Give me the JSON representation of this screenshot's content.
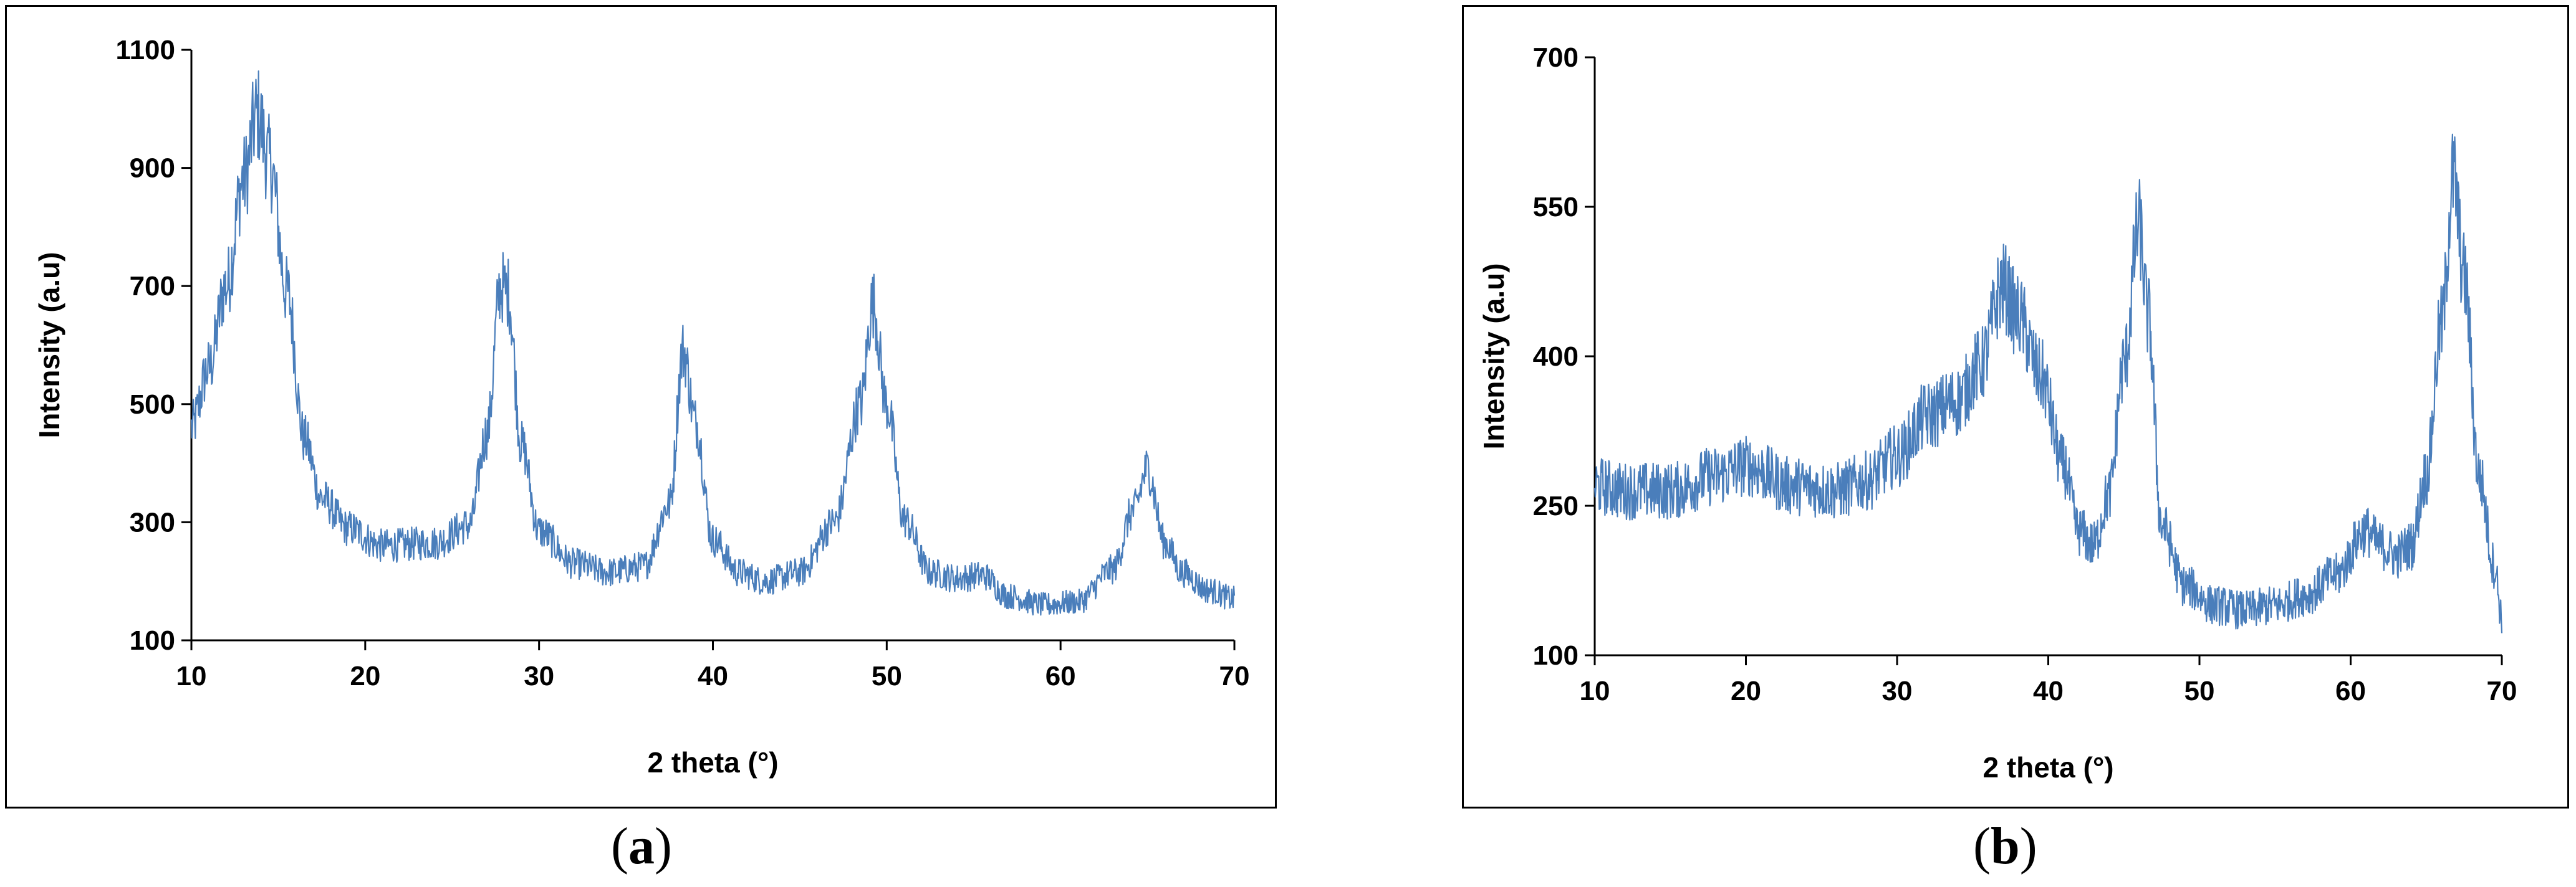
{
  "chart_data": [
    {
      "type": "line",
      "panel_label": "a",
      "xlabel": "2 theta (°)",
      "ylabel": "Intensity (a.u)",
      "xlim": [
        10,
        70
      ],
      "ylim": [
        100,
        1100
      ],
      "xticks": [
        "10",
        "20",
        "30",
        "40",
        "50",
        "60",
        "70"
      ],
      "yticks": [
        "100",
        "300",
        "500",
        "700",
        "900",
        "1100"
      ],
      "grid": false,
      "series": [
        {
          "color": "#4a7ebb",
          "x": [
            10,
            11,
            12,
            13,
            13.8,
            14.5,
            15.5,
            16.5,
            17.5,
            19,
            21,
            24,
            26,
            27,
            27.8,
            28.2,
            29,
            30,
            32,
            34,
            36,
            37.5,
            38.3,
            39,
            40,
            41.5,
            43,
            45,
            47,
            48.5,
            49.2,
            50,
            51,
            52.5,
            54,
            55.5,
            57,
            59,
            61,
            63,
            64.2,
            65,
            66,
            67,
            68.5,
            70
          ],
          "y": [
            460,
            560,
            700,
            880,
            990,
            910,
            690,
            440,
            340,
            290,
            260,
            265,
            295,
            450,
            700,
            690,
            430,
            285,
            230,
            215,
            225,
            330,
            590,
            470,
            270,
            215,
            200,
            215,
            300,
            500,
            670,
            500,
            305,
            215,
            205,
            210,
            175,
            160,
            165,
            220,
            320,
            390,
            265,
            215,
            185,
            170
          ]
        }
      ]
    },
    {
      "type": "line",
      "panel_label": "b",
      "xlabel": "2 theta (°)",
      "ylabel": "Intensity (a.u)",
      "xlim": [
        10,
        70
      ],
      "ylim": [
        100,
        700
      ],
      "xticks": [
        "10",
        "20",
        "30",
        "40",
        "50",
        "60",
        "70"
      ],
      "yticks": [
        "100",
        "250",
        "400",
        "550",
        "700"
      ],
      "grid": false,
      "series": [
        {
          "color": "#4a7ebb",
          "x": [
            10,
            12,
            15,
            18,
            20,
            23,
            26,
            28,
            30,
            32,
            34,
            35.5,
            37,
            38,
            39.5,
            41,
            42,
            43,
            44,
            45,
            46,
            46.6,
            47.5,
            49,
            51,
            53,
            55,
            57,
            59,
            61,
            62,
            63,
            64,
            65,
            66,
            66.8,
            67.5,
            68.5,
            69.5,
            70
          ],
          "y": [
            270,
            265,
            265,
            280,
            290,
            270,
            265,
            275,
            300,
            340,
            355,
            390,
            470,
            440,
            380,
            290,
            225,
            210,
            260,
            390,
            530,
            440,
            230,
            170,
            150,
            145,
            150,
            160,
            180,
            225,
            210,
            200,
            210,
            280,
            430,
            580,
            480,
            280,
            190,
            140
          ]
        }
      ]
    }
  ]
}
